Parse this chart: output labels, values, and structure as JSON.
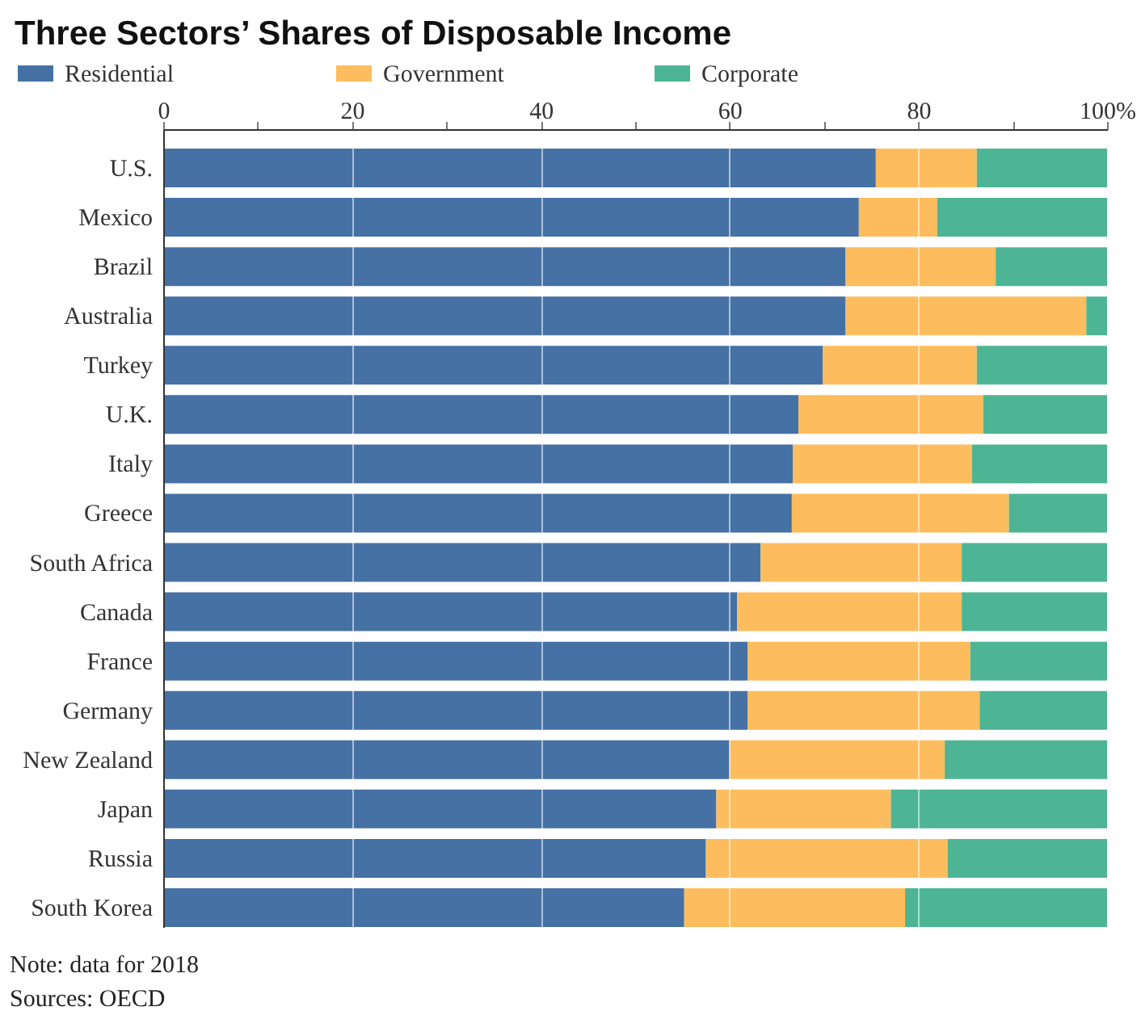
{
  "chart_data": {
    "type": "bar",
    "title": "Three Sectors’ Shares of Disposable Income",
    "orientation": "horizontal",
    "stacked": true,
    "categories": [
      "U.S.",
      "Mexico",
      "Brazil",
      "Australia",
      "Turkey",
      "U.K.",
      "Italy",
      "Greece",
      "South Africa",
      "Canada",
      "France",
      "Germany",
      "New Zealand",
      "Japan",
      "Russia",
      "South Korea"
    ],
    "series": [
      {
        "name": "Residential",
        "color": "#4671a5",
        "values": [
          75.5,
          73.7,
          72.3,
          72.3,
          69.9,
          67.3,
          66.7,
          66.6,
          63.3,
          60.8,
          61.9,
          61.9,
          60.0,
          58.6,
          57.5,
          55.2
        ]
      },
      {
        "name": "Government",
        "color": "#fdbd5e",
        "values": [
          10.7,
          8.3,
          15.9,
          25.5,
          16.3,
          19.6,
          19.0,
          23.0,
          21.3,
          23.8,
          23.6,
          24.6,
          22.8,
          18.5,
          25.6,
          23.4
        ]
      },
      {
        "name": "Corporate",
        "color": "#4eb594",
        "values": [
          13.8,
          18.0,
          11.8,
          2.2,
          13.8,
          13.1,
          14.3,
          10.4,
          15.4,
          15.4,
          14.5,
          13.5,
          17.2,
          22.9,
          16.9,
          21.4
        ]
      }
    ],
    "xlim": [
      0,
      100
    ],
    "xticks": [
      0,
      {
        "value": 10,
        "label": null
      },
      20,
      {
        "value": 30,
        "label": null
      },
      40,
      {
        "value": 50,
        "label": null
      },
      60,
      {
        "value": 70,
        "label": null
      },
      80,
      {
        "value": 90,
        "label": null
      },
      {
        "value": 100,
        "label": "100%"
      }
    ],
    "grid": "x",
    "legend": "top",
    "annotations": [
      "Note: data for 2018",
      "Sources: OECD"
    ]
  }
}
